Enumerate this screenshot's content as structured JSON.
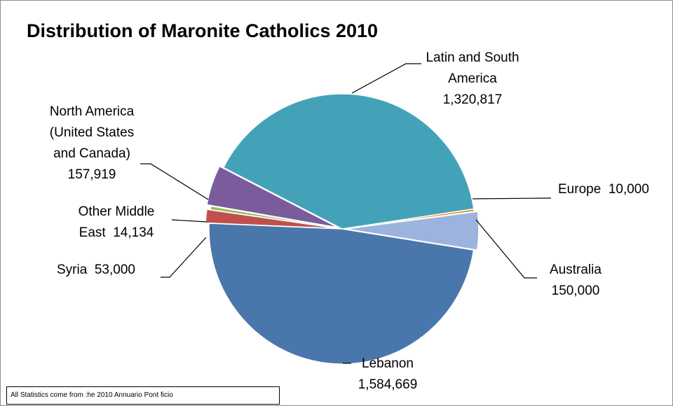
{
  "chart_data": {
    "type": "pie",
    "title": "Distribution of Maronite Catholics 2010",
    "note": "All Statistics come from :he 2010 Annuario Pont ficio",
    "slices": [
      {
        "label_lines": [
          "Europe  10,000"
        ],
        "name": "Europe",
        "value": 10000,
        "color": "#f08a24"
      },
      {
        "label_lines": [
          "Australia",
          "150,000"
        ],
        "name": "Australia",
        "value": 150000,
        "color": "#9cb3dd"
      },
      {
        "label_lines": [
          "Lebanon",
          "1,584,669"
        ],
        "name": "Lebanon",
        "value": 1584669,
        "color": "#4a77ab"
      },
      {
        "label_lines": [
          "Syria  53,000"
        ],
        "name": "Syria",
        "value": 53000,
        "color": "#c0504d"
      },
      {
        "label_lines": [
          "Other Middle",
          "East  14,134"
        ],
        "name": "Other Middle East",
        "value": 14134,
        "color": "#9bbb59"
      },
      {
        "label_lines": [
          "North America",
          "(United States",
          "and Canada)",
          "157,919"
        ],
        "name": "North America (United States and Canada)",
        "value": 157919,
        "color": "#7a5c9c"
      },
      {
        "label_lines": [
          "Latin and South",
          "America",
          "1,320,817"
        ],
        "name": "Latin and South America",
        "value": 1320817,
        "color": "#44a2b8"
      }
    ]
  }
}
